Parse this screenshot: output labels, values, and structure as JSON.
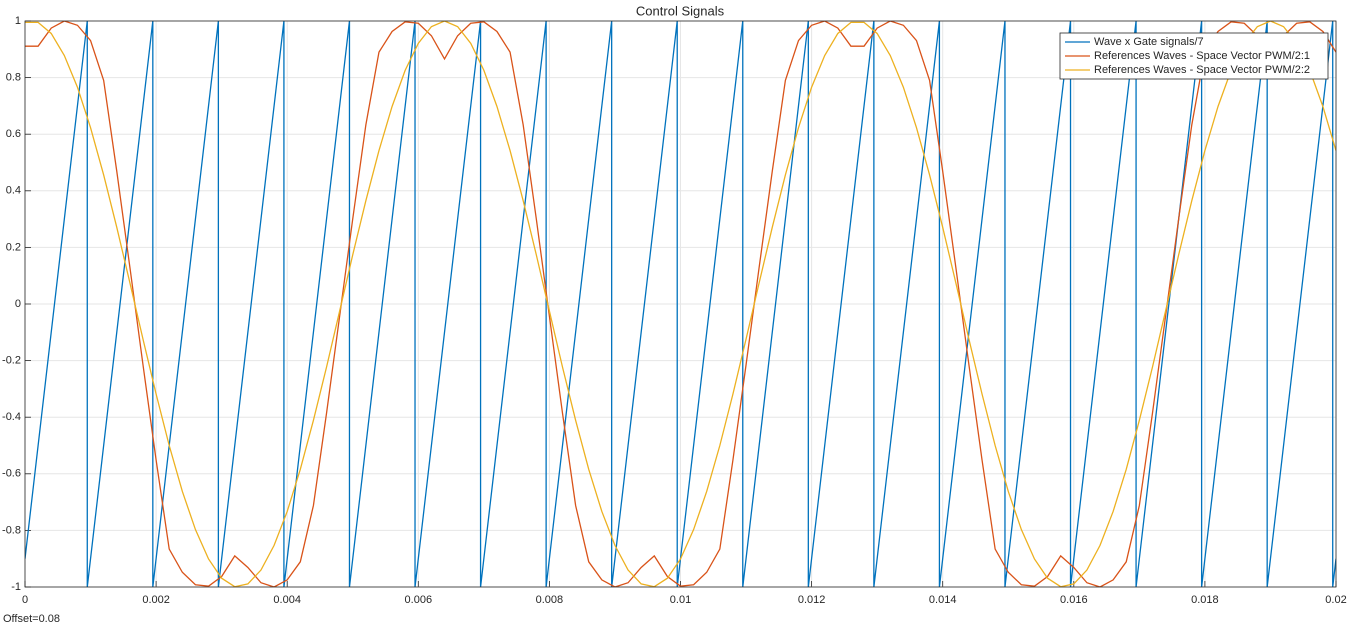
{
  "chart_data": {
    "type": "line",
    "title": "Control Signals",
    "annotation": "Offset=0.08",
    "x": [
      0,
      0.0002,
      0.0004,
      0.0006,
      0.0008,
      0.001,
      0.0012,
      0.0014,
      0.0016,
      0.0018,
      0.002,
      0.0022,
      0.0024,
      0.0026,
      0.0028,
      0.003,
      0.0032,
      0.0034,
      0.0036,
      0.0038,
      0.004,
      0.0042,
      0.0044,
      0.0046,
      0.0048,
      0.005,
      0.0052,
      0.0054,
      0.0056,
      0.0058,
      0.006,
      0.0062,
      0.0064,
      0.0066,
      0.0068,
      0.007,
      0.0072,
      0.0074,
      0.0076,
      0.0078,
      0.008,
      0.0082,
      0.0084,
      0.0086,
      0.0088,
      0.009,
      0.0092,
      0.0094,
      0.0096,
      0.0098,
      0.01,
      0.0102,
      0.0104,
      0.0106,
      0.0108,
      0.011,
      0.0112,
      0.0114,
      0.0116,
      0.0118,
      0.012,
      0.0122,
      0.0124,
      0.0126,
      0.0128,
      0.013,
      0.0132,
      0.0134,
      0.0136,
      0.0138,
      0.014,
      0.0142,
      0.0144,
      0.0146,
      0.0148,
      0.015,
      0.0152,
      0.0154,
      0.0156,
      0.0158,
      0.016,
      0.0162,
      0.0164,
      0.0166,
      0.0168,
      0.017,
      0.0172,
      0.0174,
      0.0176,
      0.0178,
      0.018,
      0.0182,
      0.0184,
      0.0186,
      0.0188,
      0.019,
      0.0192,
      0.0194,
      0.0196,
      0.0198,
      0.02
    ],
    "series": [
      {
        "name": "Wave x Gate signals/7",
        "color": "#0072bd",
        "x": [
          0,
          0.00095,
          0.00095,
          0.00195,
          0.00195,
          0.00295,
          0.00295,
          0.00395,
          0.00395,
          0.00495,
          0.00495,
          0.00595,
          0.00595,
          0.00695,
          0.00695,
          0.00795,
          0.00795,
          0.00895,
          0.00895,
          0.00995,
          0.00995,
          0.01095,
          0.01095,
          0.01195,
          0.01195,
          0.01295,
          0.01295,
          0.01395,
          0.01395,
          0.01495,
          0.01495,
          0.01595,
          0.01595,
          0.01695,
          0.01695,
          0.01795,
          0.01795,
          0.01895,
          0.01895,
          0.01995,
          0.01995,
          0.02
        ],
        "values": [
          -0.9,
          1,
          -1,
          1,
          -1,
          1,
          -1,
          1,
          -1,
          1,
          -1,
          1,
          -1,
          1,
          -1,
          1,
          -1,
          1,
          -1,
          1,
          -1,
          1,
          -1,
          1,
          -1,
          1,
          -1,
          1,
          -1,
          1,
          -1,
          1,
          -1,
          1,
          -1,
          1,
          -1,
          1,
          -1,
          1,
          -1,
          -0.9
        ]
      },
      {
        "name": "References Waves -  Space Vector PWM/2:1",
        "color": "#d95319",
        "values": [
          0.911,
          0.911,
          0.975,
          1,
          0.985,
          0.931,
          0.79,
          0.469,
          0.13,
          -0.215,
          -0.551,
          -0.866,
          -0.948,
          -0.992,
          -0.997,
          -0.963,
          -0.89,
          -0.931,
          -0.985,
          -1,
          -0.975,
          -0.911,
          -0.712,
          -0.386,
          -0.043,
          0.301,
          0.633,
          0.89,
          0.963,
          0.997,
          0.992,
          0.948,
          0.866,
          0.948,
          0.992,
          0.997,
          0.963,
          0.89,
          0.633,
          0.301,
          -0.043,
          -0.386,
          -0.712,
          -0.911,
          -0.975,
          -1,
          -0.985,
          -0.931,
          -0.89,
          -0.963,
          -0.997,
          -0.992,
          -0.948,
          -0.866,
          -0.551,
          -0.215,
          0.13,
          0.469,
          0.79,
          0.931,
          0.985,
          1,
          0.975,
          0.911,
          0.911,
          0.975,
          1,
          0.985,
          0.931,
          0.79,
          0.469,
          0.13,
          -0.215,
          -0.551,
          -0.866,
          -0.948,
          -0.992,
          -0.997,
          -0.963,
          -0.89,
          -0.931,
          -0.985,
          -1,
          -0.975,
          -0.911,
          -0.712,
          -0.386,
          -0.043,
          0.301,
          0.633,
          0.89,
          0.963,
          0.997,
          0.992,
          0.948,
          0.866,
          0.948,
          0.992,
          0.997,
          0.963,
          0.89
        ]
      },
      {
        "name": "References Waves -  Space Vector PWM/2:2",
        "color": "#edb120",
        "values": [
          0.995,
          0.995,
          0.956,
          0.878,
          0.766,
          0.623,
          0.456,
          0.271,
          0.075,
          -0.124,
          -0.318,
          -0.5,
          -0.662,
          -0.797,
          -0.901,
          -0.969,
          -0.999,
          -0.989,
          -0.94,
          -0.853,
          -0.733,
          -0.584,
          -0.411,
          -0.223,
          -0.025,
          0.174,
          0.365,
          0.542,
          0.698,
          0.826,
          0.921,
          0.98,
          1,
          0.98,
          0.921,
          0.826,
          0.698,
          0.542,
          0.365,
          0.174,
          -0.025,
          -0.223,
          -0.411,
          -0.584,
          -0.733,
          -0.853,
          -0.94,
          -0.989,
          -0.999,
          -0.969,
          -0.901,
          -0.797,
          -0.662,
          -0.5,
          -0.318,
          -0.124,
          0.075,
          0.271,
          0.456,
          0.623,
          0.766,
          0.878,
          0.956,
          0.995,
          0.995,
          0.956,
          0.878,
          0.766,
          0.623,
          0.456,
          0.271,
          0.075,
          -0.124,
          -0.318,
          -0.5,
          -0.662,
          -0.797,
          -0.901,
          -0.969,
          -0.999,
          -0.989,
          -0.94,
          -0.853,
          -0.733,
          -0.584,
          -0.411,
          -0.223,
          -0.025,
          0.174,
          0.365,
          0.542,
          0.698,
          0.826,
          0.921,
          0.98,
          1,
          0.98,
          0.921,
          0.826,
          0.698,
          0.542
        ]
      }
    ],
    "xlim": [
      0,
      0.02
    ],
    "xticks": [
      0,
      0.002,
      0.004,
      0.006,
      0.008,
      0.01,
      0.012,
      0.014,
      0.016,
      0.018,
      0.02
    ],
    "ylim": [
      -1,
      1
    ],
    "yticks": [
      -1,
      -0.8,
      -0.6,
      -0.4,
      -0.2,
      0,
      0.2,
      0.4,
      0.6,
      0.8,
      1
    ],
    "grid": true,
    "legend": "top-right"
  }
}
